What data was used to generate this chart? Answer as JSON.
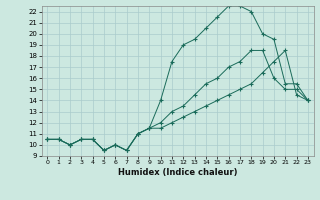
{
  "xlabel": "Humidex (Indice chaleur)",
  "bg_color": "#cce8e0",
  "grid_color": "#aacccc",
  "line_color": "#1a6b5a",
  "xlim": [
    -0.5,
    23.5
  ],
  "ylim": [
    9,
    22.5
  ],
  "x_ticks": [
    0,
    1,
    2,
    3,
    4,
    5,
    6,
    7,
    8,
    9,
    10,
    11,
    12,
    13,
    14,
    15,
    16,
    17,
    18,
    19,
    20,
    21,
    22,
    23
  ],
  "y_ticks": [
    9,
    10,
    11,
    12,
    13,
    14,
    15,
    16,
    17,
    18,
    19,
    20,
    21,
    22
  ],
  "line1_y": [
    10.5,
    10.5,
    10.0,
    10.5,
    10.5,
    9.5,
    10.0,
    9.5,
    11.0,
    11.5,
    14.0,
    17.5,
    19.0,
    19.5,
    20.5,
    21.5,
    22.5,
    22.5,
    22.0,
    20.0,
    19.5,
    15.5,
    15.5,
    14.0
  ],
  "line2_y": [
    10.5,
    10.5,
    10.0,
    10.5,
    10.5,
    9.5,
    10.0,
    9.5,
    11.0,
    11.5,
    12.0,
    13.0,
    13.5,
    14.5,
    15.5,
    16.0,
    17.0,
    17.5,
    18.5,
    18.5,
    16.0,
    15.0,
    15.0,
    14.0
  ],
  "line3_y": [
    10.5,
    10.5,
    10.0,
    10.5,
    10.5,
    9.5,
    10.0,
    9.5,
    11.0,
    11.5,
    11.5,
    12.0,
    12.5,
    13.0,
    13.5,
    14.0,
    14.5,
    15.0,
    15.5,
    16.5,
    17.5,
    18.5,
    14.5,
    14.0
  ]
}
